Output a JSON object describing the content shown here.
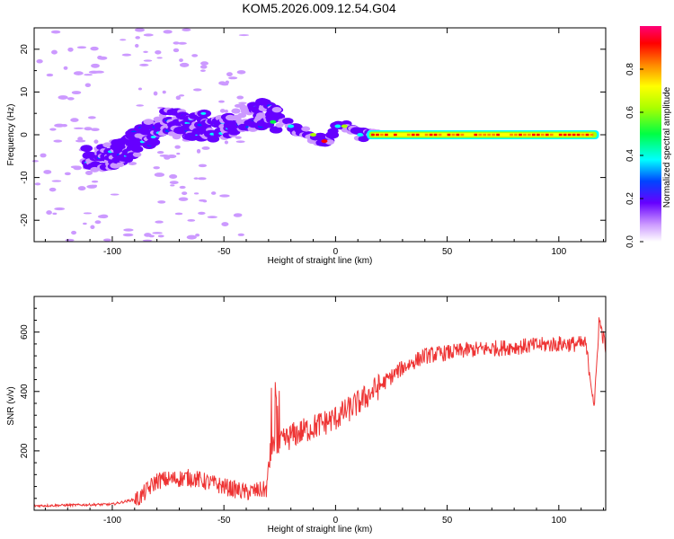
{
  "chart_data": [
    {
      "type": "heatmap",
      "title": "KOM5.2026.009.12.54.G04",
      "xlabel": "Height of straight line (km)",
      "ylabel": "Frequency (Hz)",
      "xlim": [
        -135,
        121
      ],
      "ylim": [
        -25,
        25
      ],
      "xticks": [
        -100,
        -50,
        0,
        50,
        100
      ],
      "yticks": [
        -20,
        -10,
        0,
        10,
        20
      ],
      "colorbar": {
        "label": "Normalized spectral amplitude",
        "range": [
          0,
          1
        ],
        "ticks": [
          0.0,
          0.2,
          0.4,
          0.6,
          0.8
        ],
        "tick_labels": [
          "0.0",
          "0.2",
          "0.4",
          "0.6",
          "0.8"
        ]
      },
      "ridge": [
        {
          "x": -110,
          "y": -6
        },
        {
          "x": -95,
          "y": -4
        },
        {
          "x": -85,
          "y": 0
        },
        {
          "x": -75,
          "y": 3
        },
        {
          "x": -60,
          "y": 2
        },
        {
          "x": -50,
          "y": 2
        },
        {
          "x": -40,
          "y": 4
        },
        {
          "x": -32,
          "y": 5
        },
        {
          "x": -25,
          "y": 3
        },
        {
          "x": -15,
          "y": 1
        },
        {
          "x": -8,
          "y": -1
        },
        {
          "x": -3,
          "y": -2
        },
        {
          "x": 0,
          "y": 2
        },
        {
          "x": 5,
          "y": 2
        },
        {
          "x": 10,
          "y": 0
        },
        {
          "x": 15,
          "y": 0
        },
        {
          "x": 118,
          "y": 0
        }
      ]
    },
    {
      "type": "line",
      "xlabel": "Height of straight line (km)",
      "ylabel": "SNR (v/v)",
      "xlim": [
        -135,
        121
      ],
      "ylim": [
        0,
        720
      ],
      "xticks": [
        -100,
        -50,
        0,
        50,
        100
      ],
      "yticks": [
        200,
        400,
        600
      ],
      "color": "#ee3333",
      "trend": [
        {
          "x": -135,
          "y": 15
        },
        {
          "x": -100,
          "y": 20
        },
        {
          "x": -88,
          "y": 40
        },
        {
          "x": -80,
          "y": 100
        },
        {
          "x": -65,
          "y": 110
        },
        {
          "x": -50,
          "y": 80
        },
        {
          "x": -40,
          "y": 60
        },
        {
          "x": -31,
          "y": 70
        },
        {
          "x": -29,
          "y": 200
        },
        {
          "x": -20,
          "y": 250
        },
        {
          "x": -10,
          "y": 280
        },
        {
          "x": 0,
          "y": 310
        },
        {
          "x": 10,
          "y": 360
        },
        {
          "x": 20,
          "y": 420
        },
        {
          "x": 30,
          "y": 480
        },
        {
          "x": 40,
          "y": 520
        },
        {
          "x": 60,
          "y": 540
        },
        {
          "x": 80,
          "y": 550
        },
        {
          "x": 100,
          "y": 560
        },
        {
          "x": 112,
          "y": 560
        },
        {
          "x": 116,
          "y": 350
        },
        {
          "x": 118,
          "y": 640
        },
        {
          "x": 121,
          "y": 550
        }
      ]
    }
  ]
}
